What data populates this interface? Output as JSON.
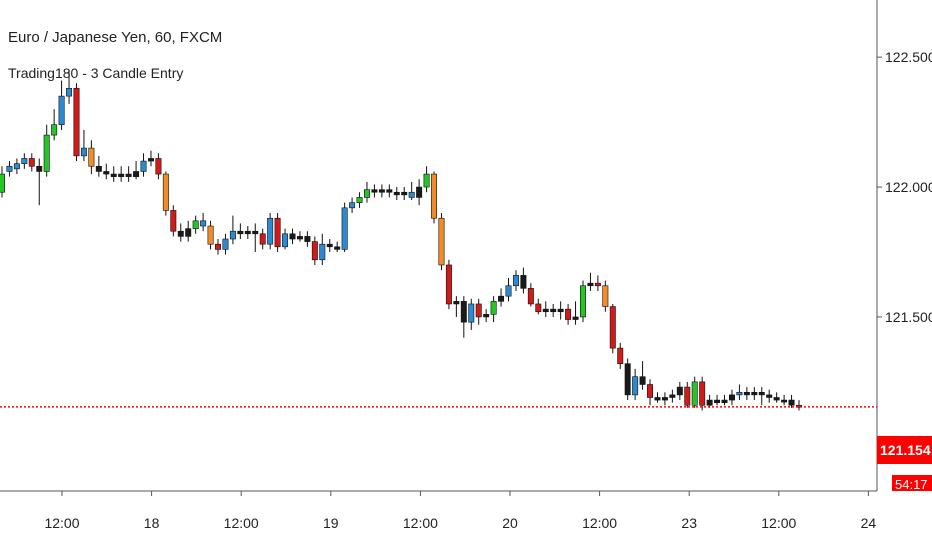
{
  "header": {
    "title": "Euro / Japanese Yen, 60, FXCM",
    "indicator": "Trading180 - 3 Candle Entry"
  },
  "price_label": {
    "value": "121.154",
    "countdown": "54:17"
  },
  "colors": {
    "bar_blue": "#2e8ad0",
    "bar_green": "#27c427",
    "bar_red": "#d11a1a",
    "bar_orange": "#f08c2a",
    "bar_black": "#1a1a1a",
    "wick": "#111111",
    "price_line": "#ff0000",
    "price_tag": "#ff0000",
    "axis": "#555555"
  },
  "chart_data": {
    "type": "candlestick",
    "title": "Euro / Japanese Yen, 60, FXCM",
    "y_ticks": [
      "122.500",
      "122.000",
      "121.500"
    ],
    "y_tick_values": [
      122.5,
      122.0,
      121.5
    ],
    "x_ticks": [
      "12:00",
      "18",
      "12:00",
      "19",
      "12:00",
      "20",
      "12:00",
      "23",
      "12:00",
      "24"
    ],
    "ylim": [
      120.83,
      122.72
    ],
    "current_price": 121.154,
    "candles": [
      {
        "o": 121.98,
        "c": 122.05,
        "h": 122.08,
        "l": 121.96,
        "col": "green"
      },
      {
        "o": 122.06,
        "c": 122.08,
        "h": 122.1,
        "l": 122.04,
        "col": "blue"
      },
      {
        "o": 122.07,
        "c": 122.09,
        "h": 122.11,
        "l": 122.05,
        "col": "blue"
      },
      {
        "o": 122.09,
        "c": 122.11,
        "h": 122.13,
        "l": 122.07,
        "col": "blue"
      },
      {
        "o": 122.11,
        "c": 122.08,
        "h": 122.13,
        "l": 122.06,
        "col": "red"
      },
      {
        "o": 122.08,
        "c": 122.06,
        "h": 122.11,
        "l": 121.93,
        "col": "black"
      },
      {
        "o": 122.06,
        "c": 122.2,
        "h": 122.24,
        "l": 122.04,
        "col": "green"
      },
      {
        "o": 122.2,
        "c": 122.24,
        "h": 122.3,
        "l": 122.18,
        "col": "green"
      },
      {
        "o": 122.24,
        "c": 122.35,
        "h": 122.41,
        "l": 122.22,
        "col": "blue"
      },
      {
        "o": 122.35,
        "c": 122.38,
        "h": 122.45,
        "l": 122.32,
        "col": "blue"
      },
      {
        "o": 122.38,
        "c": 122.12,
        "h": 122.4,
        "l": 122.1,
        "col": "red"
      },
      {
        "o": 122.12,
        "c": 122.15,
        "h": 122.22,
        "l": 122.1,
        "col": "blue"
      },
      {
        "o": 122.15,
        "c": 122.08,
        "h": 122.18,
        "l": 122.05,
        "col": "orange"
      },
      {
        "o": 122.08,
        "c": 122.06,
        "h": 122.12,
        "l": 122.04,
        "col": "black"
      },
      {
        "o": 122.06,
        "c": 122.05,
        "h": 122.09,
        "l": 122.03,
        "col": "black"
      },
      {
        "o": 122.05,
        "c": 122.04,
        "h": 122.08,
        "l": 122.02,
        "col": "black"
      },
      {
        "o": 122.04,
        "c": 122.05,
        "h": 122.08,
        "l": 122.02,
        "col": "black"
      },
      {
        "o": 122.05,
        "c": 122.04,
        "h": 122.08,
        "l": 122.02,
        "col": "black"
      },
      {
        "o": 122.04,
        "c": 122.06,
        "h": 122.1,
        "l": 122.03,
        "col": "black"
      },
      {
        "o": 122.06,
        "c": 122.1,
        "h": 122.13,
        "l": 122.04,
        "col": "blue"
      },
      {
        "o": 122.1,
        "c": 122.11,
        "h": 122.14,
        "l": 122.08,
        "col": "black"
      },
      {
        "o": 122.11,
        "c": 122.05,
        "h": 122.13,
        "l": 122.03,
        "col": "red"
      },
      {
        "o": 122.05,
        "c": 121.91,
        "h": 122.06,
        "l": 121.89,
        "col": "orange"
      },
      {
        "o": 121.91,
        "c": 121.83,
        "h": 121.93,
        "l": 121.81,
        "col": "red"
      },
      {
        "o": 121.83,
        "c": 121.81,
        "h": 121.86,
        "l": 121.79,
        "col": "black"
      },
      {
        "o": 121.81,
        "c": 121.84,
        "h": 121.87,
        "l": 121.79,
        "col": "black"
      },
      {
        "o": 121.84,
        "c": 121.87,
        "h": 121.89,
        "l": 121.82,
        "col": "green"
      },
      {
        "o": 121.87,
        "c": 121.85,
        "h": 121.9,
        "l": 121.83,
        "col": "blue"
      },
      {
        "o": 121.85,
        "c": 121.78,
        "h": 121.87,
        "l": 121.76,
        "col": "orange"
      },
      {
        "o": 121.78,
        "c": 121.76,
        "h": 121.8,
        "l": 121.74,
        "col": "red"
      },
      {
        "o": 121.76,
        "c": 121.8,
        "h": 121.82,
        "l": 121.74,
        "col": "blue"
      },
      {
        "o": 121.8,
        "c": 121.83,
        "h": 121.89,
        "l": 121.78,
        "col": "blue"
      },
      {
        "o": 121.83,
        "c": 121.82,
        "h": 121.86,
        "l": 121.8,
        "col": "black"
      },
      {
        "o": 121.82,
        "c": 121.83,
        "h": 121.85,
        "l": 121.8,
        "col": "black"
      },
      {
        "o": 121.83,
        "c": 121.82,
        "h": 121.86,
        "l": 121.75,
        "col": "black"
      },
      {
        "o": 121.82,
        "c": 121.78,
        "h": 121.84,
        "l": 121.76,
        "col": "red"
      },
      {
        "o": 121.78,
        "c": 121.88,
        "h": 121.9,
        "l": 121.76,
        "col": "blue"
      },
      {
        "o": 121.88,
        "c": 121.77,
        "h": 121.9,
        "l": 121.75,
        "col": "red"
      },
      {
        "o": 121.77,
        "c": 121.82,
        "h": 121.84,
        "l": 121.76,
        "col": "blue"
      },
      {
        "o": 121.82,
        "c": 121.8,
        "h": 121.84,
        "l": 121.78,
        "col": "black"
      },
      {
        "o": 121.8,
        "c": 121.81,
        "h": 121.83,
        "l": 121.79,
        "col": "black"
      },
      {
        "o": 121.81,
        "c": 121.79,
        "h": 121.83,
        "l": 121.77,
        "col": "black"
      },
      {
        "o": 121.79,
        "c": 121.72,
        "h": 121.81,
        "l": 121.7,
        "col": "red"
      },
      {
        "o": 121.72,
        "c": 121.78,
        "h": 121.82,
        "l": 121.7,
        "col": "blue"
      },
      {
        "o": 121.78,
        "c": 121.77,
        "h": 121.8,
        "l": 121.75,
        "col": "black"
      },
      {
        "o": 121.77,
        "c": 121.76,
        "h": 121.79,
        "l": 121.75,
        "col": "black"
      },
      {
        "o": 121.76,
        "c": 121.92,
        "h": 121.94,
        "l": 121.75,
        "col": "blue"
      },
      {
        "o": 121.92,
        "c": 121.94,
        "h": 121.96,
        "l": 121.9,
        "col": "blue"
      },
      {
        "o": 121.94,
        "c": 121.96,
        "h": 121.98,
        "l": 121.92,
        "col": "green"
      },
      {
        "o": 121.96,
        "c": 121.99,
        "h": 122.02,
        "l": 121.94,
        "col": "green"
      },
      {
        "o": 121.99,
        "c": 121.98,
        "h": 122.01,
        "l": 121.96,
        "col": "black"
      },
      {
        "o": 121.98,
        "c": 121.99,
        "h": 122.01,
        "l": 121.96,
        "col": "black"
      },
      {
        "o": 121.99,
        "c": 121.98,
        "h": 122.01,
        "l": 121.96,
        "col": "black"
      },
      {
        "o": 121.98,
        "c": 121.97,
        "h": 122.0,
        "l": 121.95,
        "col": "black"
      },
      {
        "o": 121.97,
        "c": 121.98,
        "h": 122.0,
        "l": 121.95,
        "col": "black"
      },
      {
        "o": 121.98,
        "c": 121.96,
        "h": 122.02,
        "l": 121.95,
        "col": "blue"
      },
      {
        "o": 121.96,
        "c": 122.0,
        "h": 122.03,
        "l": 121.93,
        "col": "black"
      },
      {
        "o": 122.0,
        "c": 122.05,
        "h": 122.08,
        "l": 121.98,
        "col": "green"
      },
      {
        "o": 122.05,
        "c": 121.88,
        "h": 122.06,
        "l": 121.86,
        "col": "orange"
      },
      {
        "o": 121.88,
        "c": 121.7,
        "h": 121.9,
        "l": 121.68,
        "col": "orange"
      },
      {
        "o": 121.7,
        "c": 121.55,
        "h": 121.72,
        "l": 121.53,
        "col": "red"
      },
      {
        "o": 121.55,
        "c": 121.56,
        "h": 121.58,
        "l": 121.5,
        "col": "black"
      },
      {
        "o": 121.56,
        "c": 121.48,
        "h": 121.58,
        "l": 121.42,
        "col": "black"
      },
      {
        "o": 121.48,
        "c": 121.55,
        "h": 121.57,
        "l": 121.45,
        "col": "blue"
      },
      {
        "o": 121.55,
        "c": 121.5,
        "h": 121.57,
        "l": 121.47,
        "col": "red"
      },
      {
        "o": 121.5,
        "c": 121.51,
        "h": 121.53,
        "l": 121.48,
        "col": "black"
      },
      {
        "o": 121.51,
        "c": 121.56,
        "h": 121.58,
        "l": 121.48,
        "col": "green"
      },
      {
        "o": 121.56,
        "c": 121.58,
        "h": 121.61,
        "l": 121.54,
        "col": "black"
      },
      {
        "o": 121.58,
        "c": 121.62,
        "h": 121.65,
        "l": 121.56,
        "col": "blue"
      },
      {
        "o": 121.62,
        "c": 121.66,
        "h": 121.68,
        "l": 121.6,
        "col": "blue"
      },
      {
        "o": 121.66,
        "c": 121.61,
        "h": 121.69,
        "l": 121.59,
        "col": "black"
      },
      {
        "o": 121.61,
        "c": 121.55,
        "h": 121.63,
        "l": 121.54,
        "col": "red"
      },
      {
        "o": 121.55,
        "c": 121.52,
        "h": 121.57,
        "l": 121.51,
        "col": "red"
      },
      {
        "o": 121.52,
        "c": 121.53,
        "h": 121.56,
        "l": 121.5,
        "col": "black"
      },
      {
        "o": 121.53,
        "c": 121.52,
        "h": 121.55,
        "l": 121.5,
        "col": "black"
      },
      {
        "o": 121.52,
        "c": 121.53,
        "h": 121.56,
        "l": 121.49,
        "col": "black"
      },
      {
        "o": 121.53,
        "c": 121.49,
        "h": 121.55,
        "l": 121.47,
        "col": "red"
      },
      {
        "o": 121.49,
        "c": 121.5,
        "h": 121.56,
        "l": 121.47,
        "col": "black"
      },
      {
        "o": 121.5,
        "c": 121.62,
        "h": 121.64,
        "l": 121.48,
        "col": "green"
      },
      {
        "o": 121.62,
        "c": 121.63,
        "h": 121.67,
        "l": 121.6,
        "col": "black"
      },
      {
        "o": 121.63,
        "c": 121.62,
        "h": 121.66,
        "l": 121.6,
        "col": "red"
      },
      {
        "o": 121.62,
        "c": 121.54,
        "h": 121.64,
        "l": 121.52,
        "col": "orange"
      },
      {
        "o": 121.54,
        "c": 121.38,
        "h": 121.55,
        "l": 121.36,
        "col": "red"
      },
      {
        "o": 121.38,
        "c": 121.32,
        "h": 121.4,
        "l": 121.3,
        "col": "red"
      },
      {
        "o": 121.32,
        "c": 121.2,
        "h": 121.34,
        "l": 121.18,
        "col": "black"
      },
      {
        "o": 121.2,
        "c": 121.27,
        "h": 121.3,
        "l": 121.18,
        "col": "blue"
      },
      {
        "o": 121.27,
        "c": 121.24,
        "h": 121.33,
        "l": 121.22,
        "col": "black"
      },
      {
        "o": 121.24,
        "c": 121.19,
        "h": 121.26,
        "l": 121.16,
        "col": "red"
      },
      {
        "o": 121.19,
        "c": 121.18,
        "h": 121.21,
        "l": 121.17,
        "col": "black"
      },
      {
        "o": 121.18,
        "c": 121.19,
        "h": 121.21,
        "l": 121.16,
        "col": "black"
      },
      {
        "o": 121.19,
        "c": 121.2,
        "h": 121.22,
        "l": 121.17,
        "col": "black"
      },
      {
        "o": 121.2,
        "c": 121.23,
        "h": 121.25,
        "l": 121.18,
        "col": "black"
      },
      {
        "o": 121.23,
        "c": 121.16,
        "h": 121.25,
        "l": 121.15,
        "col": "red"
      },
      {
        "o": 121.16,
        "c": 121.25,
        "h": 121.27,
        "l": 121.15,
        "col": "green"
      },
      {
        "o": 121.25,
        "c": 121.16,
        "h": 121.27,
        "l": 121.14,
        "col": "red"
      },
      {
        "o": 121.16,
        "c": 121.18,
        "h": 121.2,
        "l": 121.15,
        "col": "black"
      },
      {
        "o": 121.18,
        "c": 121.17,
        "h": 121.2,
        "l": 121.16,
        "col": "black"
      },
      {
        "o": 121.17,
        "c": 121.18,
        "h": 121.2,
        "l": 121.16,
        "col": "black"
      },
      {
        "o": 121.18,
        "c": 121.2,
        "h": 121.22,
        "l": 121.16,
        "col": "black"
      },
      {
        "o": 121.2,
        "c": 121.21,
        "h": 121.24,
        "l": 121.18,
        "col": "blue"
      },
      {
        "o": 121.21,
        "c": 121.2,
        "h": 121.23,
        "l": 121.18,
        "col": "black"
      },
      {
        "o": 121.2,
        "c": 121.21,
        "h": 121.23,
        "l": 121.18,
        "col": "black"
      },
      {
        "o": 121.21,
        "c": 121.2,
        "h": 121.23,
        "l": 121.16,
        "col": "black"
      },
      {
        "o": 121.2,
        "c": 121.19,
        "h": 121.22,
        "l": 121.17,
        "col": "black"
      },
      {
        "o": 121.19,
        "c": 121.18,
        "h": 121.21,
        "l": 121.17,
        "col": "black"
      },
      {
        "o": 121.18,
        "c": 121.18,
        "h": 121.2,
        "l": 121.16,
        "col": "black"
      },
      {
        "o": 121.18,
        "c": 121.16,
        "h": 121.2,
        "l": 121.15,
        "col": "black"
      },
      {
        "o": 121.16,
        "c": 121.155,
        "h": 121.18,
        "l": 121.14,
        "col": "red"
      }
    ]
  }
}
